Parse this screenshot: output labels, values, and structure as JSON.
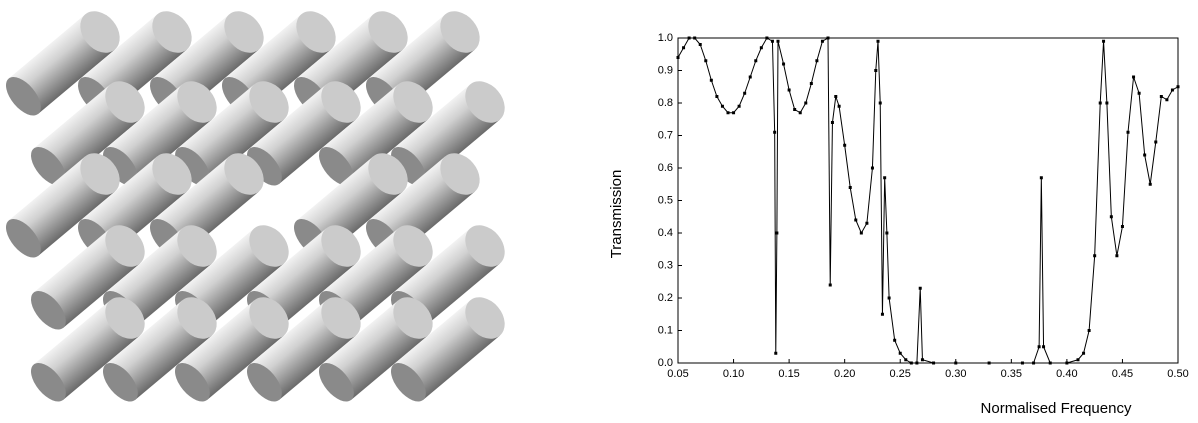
{
  "chart_data": {
    "type": "line",
    "xlabel": "Normalised Frequency",
    "ylabel": "Transmission",
    "x": [
      0.05,
      0.055,
      0.06,
      0.065,
      0.07,
      0.075,
      0.08,
      0.085,
      0.09,
      0.095,
      0.1,
      0.105,
      0.11,
      0.115,
      0.12,
      0.125,
      0.13,
      0.135,
      0.137,
      0.138,
      0.139,
      0.14,
      0.145,
      0.15,
      0.155,
      0.16,
      0.165,
      0.17,
      0.175,
      0.18,
      0.185,
      0.187,
      0.189,
      0.192,
      0.195,
      0.2,
      0.205,
      0.21,
      0.215,
      0.22,
      0.225,
      0.228,
      0.23,
      0.232,
      0.234,
      0.236,
      0.238,
      0.24,
      0.245,
      0.25,
      0.255,
      0.26,
      0.265,
      0.268,
      0.27,
      0.28,
      0.3,
      0.33,
      0.36,
      0.37,
      0.375,
      0.377,
      0.379,
      0.385,
      0.4,
      0.41,
      0.415,
      0.42,
      0.425,
      0.43,
      0.433,
      0.436,
      0.44,
      0.445,
      0.45,
      0.455,
      0.46,
      0.465,
      0.47,
      0.475,
      0.48,
      0.485,
      0.49,
      0.495,
      0.5
    ],
    "values": [
      0.94,
      0.97,
      1.0,
      1.0,
      0.98,
      0.93,
      0.87,
      0.82,
      0.79,
      0.77,
      0.77,
      0.79,
      0.83,
      0.88,
      0.93,
      0.97,
      1.0,
      0.99,
      0.71,
      0.03,
      0.4,
      0.99,
      0.92,
      0.84,
      0.78,
      0.77,
      0.8,
      0.86,
      0.93,
      0.99,
      1.0,
      0.24,
      0.74,
      0.82,
      0.79,
      0.67,
      0.54,
      0.44,
      0.4,
      0.43,
      0.6,
      0.9,
      0.99,
      0.8,
      0.15,
      0.57,
      0.4,
      0.2,
      0.07,
      0.03,
      0.01,
      0.0,
      0.0,
      0.23,
      0.01,
      0.0,
      0.0,
      0.0,
      0.0,
      0.0,
      0.05,
      0.57,
      0.05,
      0.0,
      0.0,
      0.01,
      0.03,
      0.1,
      0.33,
      0.8,
      0.99,
      0.8,
      0.45,
      0.33,
      0.42,
      0.71,
      0.88,
      0.83,
      0.64,
      0.55,
      0.68,
      0.82,
      0.81,
      0.84,
      0.85
    ],
    "color": "#000000",
    "xlim": [
      0.05,
      0.5
    ],
    "xticks": [
      0.05,
      {
        "value": 0.1,
        "label": "0.10"
      },
      0.15,
      {
        "value": 0.2,
        "label": "0.20"
      },
      0.25,
      {
        "value": 0.3,
        "label": "0.30"
      },
      0.35,
      {
        "value": 0.4,
        "label": "0.40"
      },
      0.45,
      {
        "value": 0.5,
        "label": "0.50"
      }
    ],
    "ylim": [
      0,
      1
    ],
    "yticks": [
      {
        "value": 0,
        "label": "0.0"
      },
      0.1,
      0.2,
      0.3,
      0.4,
      0.5,
      0.6,
      0.7,
      0.8,
      0.9,
      {
        "value": 1,
        "label": "1.0"
      }
    ]
  }
}
